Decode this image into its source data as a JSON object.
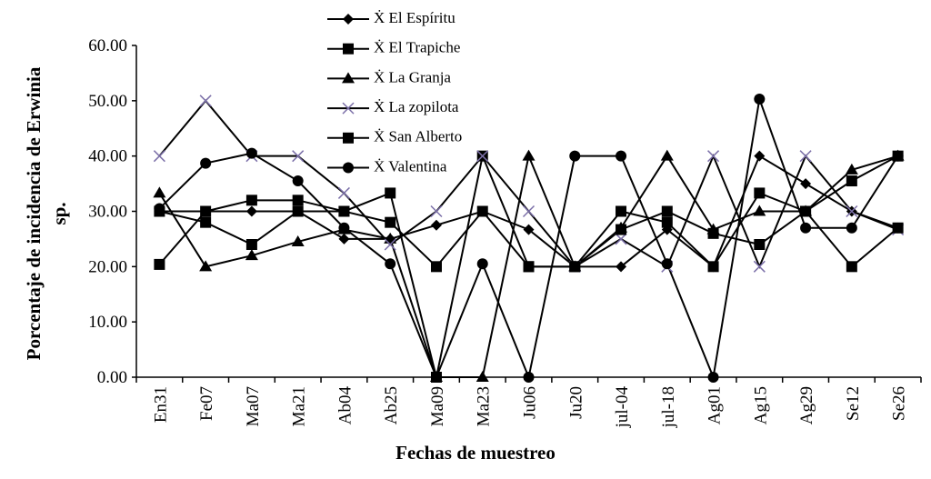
{
  "chart_data": {
    "type": "line",
    "x_label": "Fechas de muestreo",
    "y_label": [
      "Porcentaje de incidencia de Erwinia",
      "sp."
    ],
    "categories": [
      "En31",
      "Fe07",
      "Ma07",
      "Ma21",
      "Ab04",
      "Ab25",
      "Ma09",
      "Ma23",
      "Ju06",
      "Ju20",
      "jul-04",
      "jul-18",
      "Ag01",
      "Ag15",
      "Ag29",
      "Se12",
      "Se26"
    ],
    "ylim": [
      0,
      60
    ],
    "yticks": [
      {
        "value": 0,
        "label": "0.00"
      },
      {
        "value": 10,
        "label": "10.00"
      },
      {
        "value": 20,
        "label": "20.00"
      },
      {
        "value": 30,
        "label": "30.00"
      },
      {
        "value": 40,
        "label": "40.00"
      },
      {
        "value": 50,
        "label": "50.00"
      },
      {
        "value": 60,
        "label": "60.00"
      }
    ],
    "grid": false,
    "series": [
      {
        "name": "Ẋ El Espíritu",
        "color": "#000000",
        "marker": "diamond",
        "marker_color": "#000000",
        "values": [
          30,
          30,
          30,
          30,
          25,
          25,
          27.5,
          30,
          26.7,
          20,
          20,
          26.7,
          20,
          40,
          35,
          30,
          27
        ]
      },
      {
        "name": "Ẋ El Trapiche",
        "color": "#000000",
        "marker": "square",
        "marker_color": "#000000",
        "values": [
          20.4,
          30,
          32,
          32,
          30,
          33.3,
          0,
          40,
          20,
          20,
          30,
          28,
          20,
          33.3,
          30,
          35.5,
          40
        ]
      },
      {
        "name": "Ẋ La Granja",
        "color": "#000000",
        "marker": "triangle",
        "marker_color": "#000000",
        "values": [
          33.3,
          20,
          22,
          24.5,
          26.7,
          25,
          0,
          0,
          40,
          20,
          27,
          40,
          26.7,
          30,
          30,
          37.5,
          40
        ]
      },
      {
        "name": "Ẋ La zopilota",
        "color": "#000000",
        "marker": "x",
        "marker_color": "#7b6fa8",
        "values": [
          40,
          50,
          40,
          40,
          33.3,
          24,
          30,
          40,
          30,
          20,
          25,
          20,
          40,
          20,
          40,
          30,
          26.7
        ]
      },
      {
        "name": "Ẋ San Alberto",
        "color": "#000000",
        "marker": "square",
        "marker_color": "#000000",
        "values": [
          30,
          28,
          24,
          30,
          30,
          28,
          20,
          30,
          20,
          20,
          26.7,
          30,
          26,
          24,
          30,
          20,
          27
        ]
      },
      {
        "name": "Ẋ Valentina",
        "color": "#000000",
        "marker": "circle",
        "marker_color": "#000000",
        "values": [
          30.5,
          38.7,
          40.5,
          35.5,
          27,
          20.5,
          0,
          20.5,
          0,
          40,
          40,
          20.5,
          0,
          50.3,
          27,
          27,
          40
        ]
      }
    ]
  }
}
